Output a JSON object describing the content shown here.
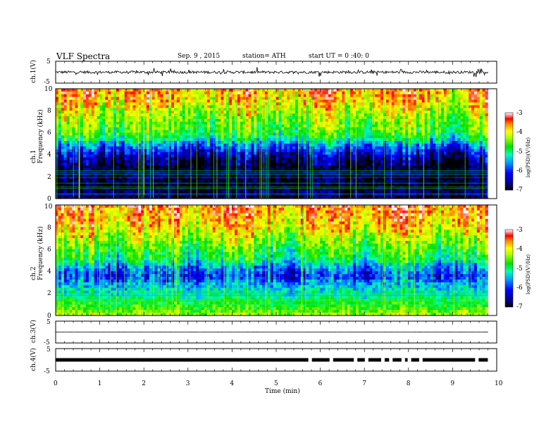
{
  "header": {
    "title": "VLF  Spectra",
    "date": "Sep. 9  , 2015",
    "station": "station= ATH",
    "start": "start  UT =   0 :40: 0"
  },
  "chart_data": [
    {
      "type": "line",
      "panel": "ch1-waveform",
      "ylabel": "ch.1(V)",
      "ylim": [
        -5,
        5
      ],
      "xlim": [
        0,
        10
      ],
      "y_ticks": [
        "5",
        "-5"
      ],
      "baseline": 0,
      "noise_amplitude": 0.6,
      "burst_amplitude": 2.0,
      "data_end": 9.8,
      "color": "#000000"
    },
    {
      "type": "heatmap",
      "panel": "ch1-spectrogram",
      "ylabel": "ch.1\nFrequency  (kHz)",
      "ylim": [
        0,
        10
      ],
      "xlim": [
        0,
        10
      ],
      "y_ticks": [
        "10",
        "8",
        "6",
        "4",
        "2",
        "0"
      ],
      "data_end": 9.8,
      "profile_freq_khz": [
        0,
        0.5,
        1,
        2,
        3,
        3.5,
        4,
        4.5,
        5,
        5.5,
        6,
        7,
        8,
        9,
        10
      ],
      "profile_logpsd": [
        -7,
        -6.6,
        -7,
        -6.8,
        -6.9,
        -6.7,
        -6.4,
        -6.0,
        -5.6,
        -5.0,
        -4.7,
        -4.5,
        -4.2,
        -3.8,
        -3.7
      ],
      "colorbar": {
        "label": "log(PSD)(V²/Hz)",
        "range": [
          -7,
          -3
        ],
        "ticks": [
          "-3",
          "-4",
          "-5",
          "-6",
          "-7"
        ]
      }
    },
    {
      "type": "heatmap",
      "panel": "ch2-spectrogram",
      "ylabel": "ch.2\nFrequency  (kHz)",
      "ylim": [
        0,
        10
      ],
      "xlim": [
        0,
        10
      ],
      "y_ticks": [
        "10",
        "8",
        "6",
        "4",
        "2",
        "0"
      ],
      "data_end": 9.8,
      "profile_freq_khz": [
        0,
        0.5,
        1,
        1.5,
        2,
        2.5,
        3,
        3.5,
        4,
        4.5,
        5,
        6,
        7,
        8,
        9,
        10
      ],
      "profile_logpsd": [
        -4.2,
        -4.6,
        -4.7,
        -5.0,
        -5.2,
        -5.4,
        -5.6,
        -6.0,
        -5.8,
        -5.5,
        -5.0,
        -4.7,
        -4.3,
        -3.9,
        -3.7,
        -3.5
      ],
      "colorbar": {
        "label": "log(PSD)(V²/Hz)",
        "range": [
          -7,
          -3
        ],
        "ticks": [
          "-3",
          "-4",
          "-5",
          "-6",
          "-7"
        ]
      }
    },
    {
      "type": "line",
      "panel": "ch3-waveform",
      "ylabel": "ch.3(V)",
      "ylim": [
        -5,
        5
      ],
      "xlim": [
        0,
        10
      ],
      "y_ticks": [
        "5",
        "-5"
      ],
      "baseline": 0,
      "noise_amplitude": 0.05,
      "data_end": 9.8,
      "color": "#000000"
    },
    {
      "type": "line",
      "panel": "ch4-waveform",
      "ylabel": "ch.4(V)",
      "ylim": [
        -5,
        5
      ],
      "xlim": [
        0,
        10
      ],
      "y_ticks": [
        "5",
        "-5"
      ],
      "baseline": 0,
      "data_end": 9.8,
      "gaps_min": [
        5.77,
        6.25,
        6.8,
        7.05,
        7.42,
        7.6,
        7.88,
        8.02,
        8.28,
        9.55
      ],
      "color": "#000000"
    }
  ],
  "x_axis": {
    "label": "Time  (min)",
    "ticks": [
      "0",
      "1",
      "2",
      "3",
      "4",
      "5",
      "6",
      "7",
      "8",
      "9",
      "10"
    ]
  }
}
